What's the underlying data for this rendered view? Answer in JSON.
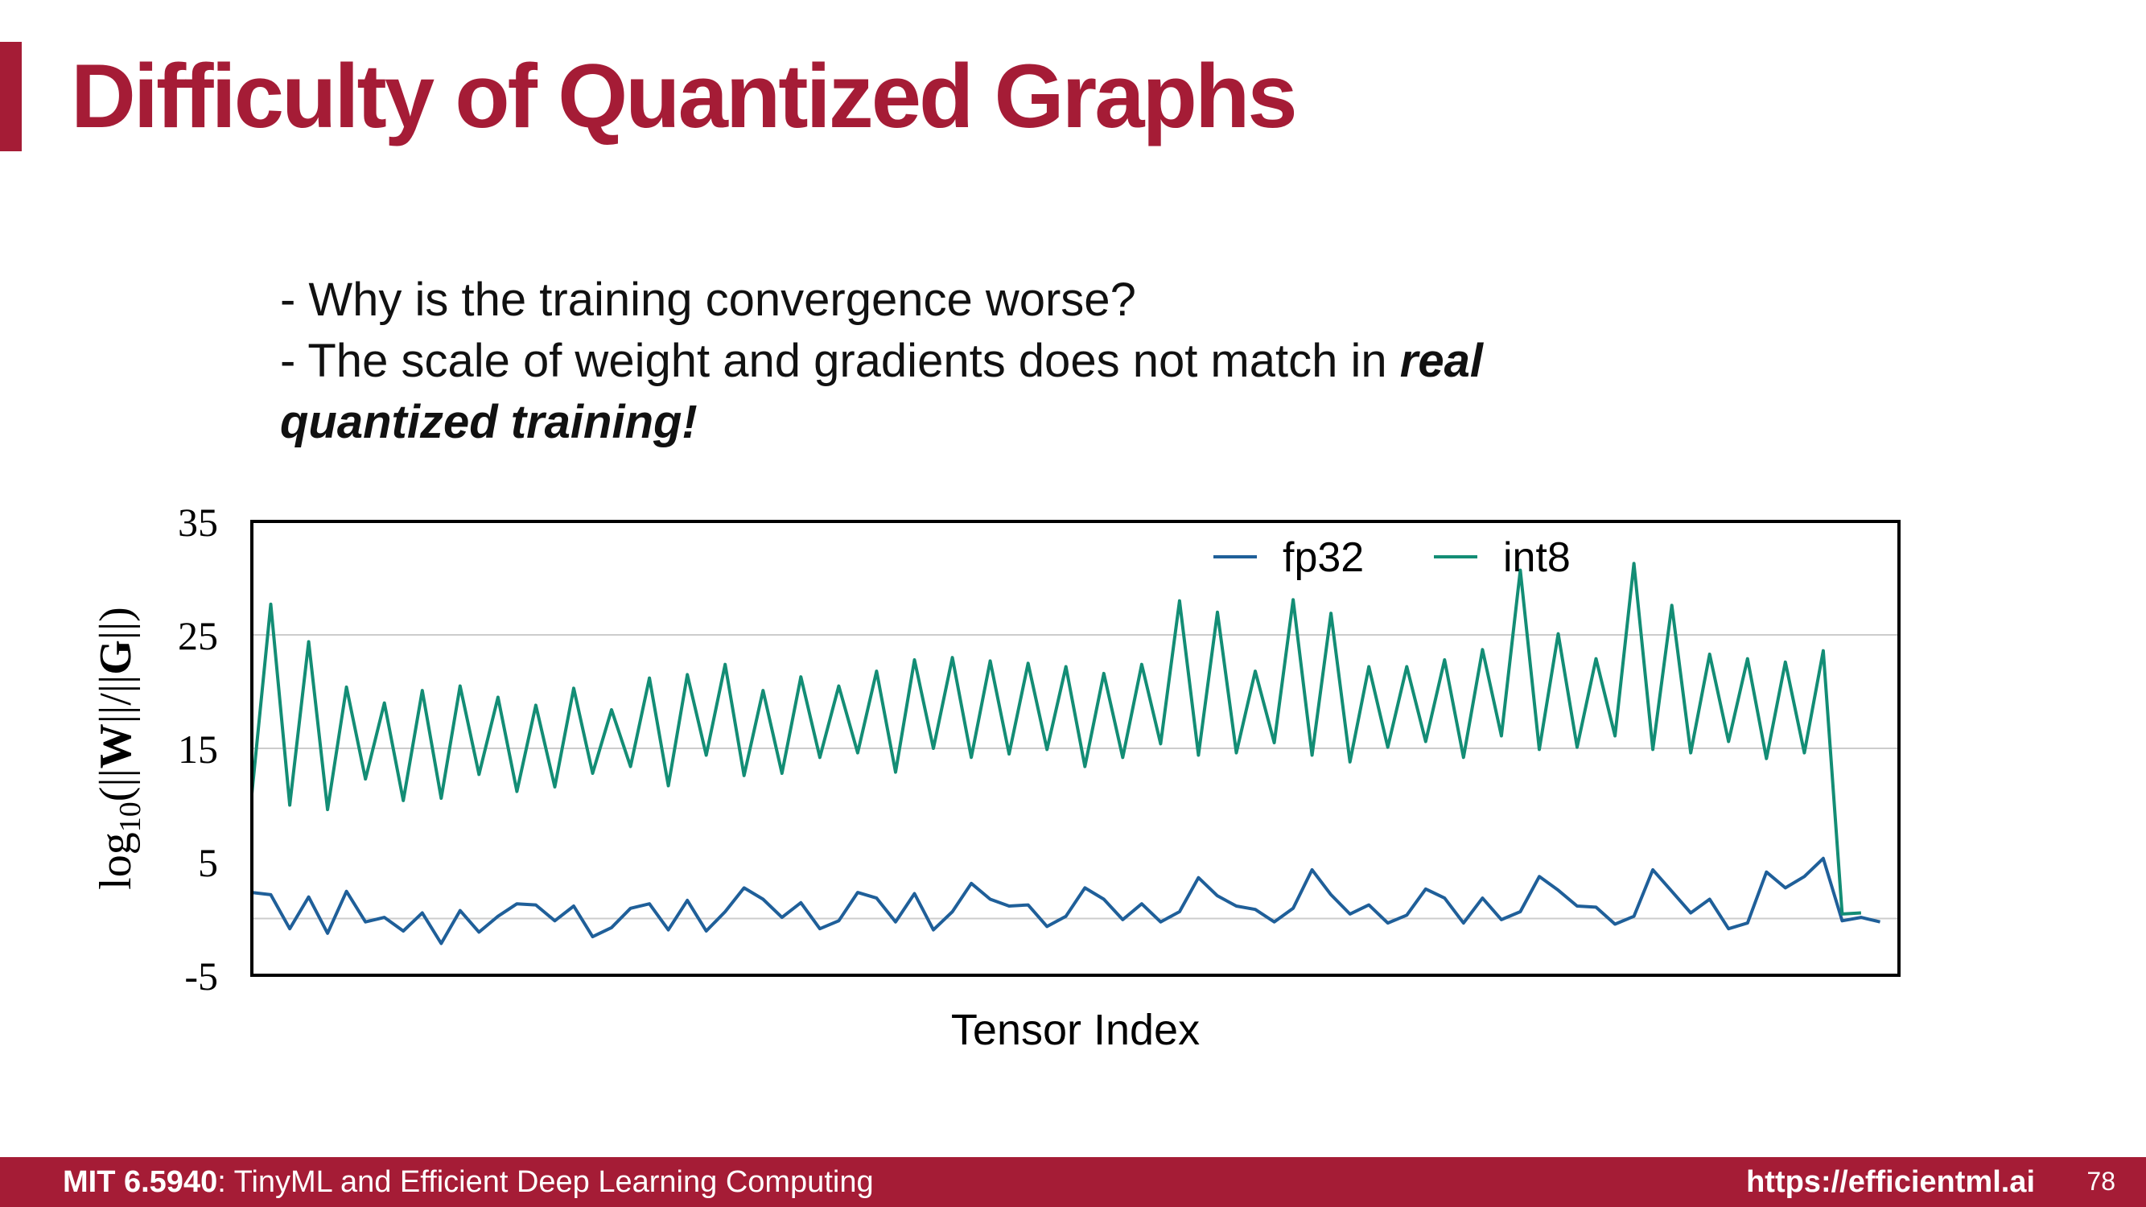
{
  "slide": {
    "title": "Difficulty of Quantized Graphs",
    "bullet1": "- Why is the training convergence worse?",
    "bullet2_prefix": "- The scale of weight and gradients does not match in ",
    "bullet2_emph_a": "real",
    "bullet2_emph_b": "quantized training!"
  },
  "footer": {
    "course_code": "MIT 6.5940",
    "course_name": ": TinyML and Efficient Deep Learning Computing",
    "url": "https://efficientml.ai",
    "page_number": "78"
  },
  "colors": {
    "accent": "#a51c36",
    "fp32": "#1f5f99",
    "int8": "#138d75"
  },
  "chart_data": {
    "type": "line",
    "xlabel": "Tensor Index",
    "ylabel": "log10(||W||/||G||)",
    "ylim": [
      -5,
      35
    ],
    "yticks": [
      "35",
      "25",
      "15",
      "5",
      "-5"
    ],
    "grid": "horizontal",
    "legend": "top-right",
    "x": [
      1,
      2,
      3,
      4,
      5,
      6,
      7,
      8,
      9,
      10,
      11,
      12,
      13,
      14,
      15,
      16,
      17,
      18,
      19,
      20,
      21,
      22,
      23,
      24,
      25,
      26,
      27,
      28,
      29,
      30,
      31,
      32,
      33,
      34,
      35,
      36,
      37,
      38,
      39,
      40,
      41,
      42,
      43,
      44,
      45,
      46,
      47,
      48,
      49,
      50,
      51,
      52,
      53,
      54,
      55,
      56,
      57,
      58,
      59,
      60,
      61,
      62,
      63,
      64,
      65,
      66,
      67,
      68,
      69,
      70,
      71,
      72,
      73,
      74,
      75,
      76,
      77,
      78,
      79,
      80,
      81,
      82,
      83,
      84,
      85,
      86,
      87,
      88
    ],
    "series": [
      {
        "name": "fp32",
        "values": [
          2.3,
          2.1,
          -0.9,
          1.9,
          -1.3,
          2.4,
          -0.3,
          0.1,
          -1.1,
          0.5,
          -2.2,
          0.7,
          -1.2,
          0.2,
          1.3,
          1.2,
          -0.2,
          1.1,
          -1.6,
          -0.8,
          0.9,
          1.3,
          -1.0,
          1.6,
          -1.1,
          0.6,
          2.7,
          1.7,
          0.1,
          1.4,
          -0.9,
          -0.2,
          2.3,
          1.8,
          -0.3,
          2.2,
          -1.0,
          0.6,
          3.1,
          1.7,
          1.1,
          1.2,
          -0.7,
          0.2,
          2.7,
          1.7,
          -0.1,
          1.3,
          -0.3,
          0.6,
          3.6,
          2.0,
          1.1,
          0.8,
          -0.3,
          0.9,
          4.3,
          2.1,
          0.4,
          1.2,
          -0.4,
          0.3,
          2.6,
          1.8,
          -0.4,
          1.8,
          -0.1,
          0.6,
          3.7,
          2.5,
          1.1,
          1.0,
          -0.5,
          0.2,
          4.3,
          2.4,
          0.5,
          1.7,
          -0.9,
          -0.4,
          4.1,
          2.7,
          3.7,
          5.3,
          -0.2,
          0.1,
          -0.3,
          null
        ],
        "values_tail_note": ""
      },
      {
        "name": "int8",
        "values": [
          11.0,
          27.7,
          10.0,
          24.4,
          9.6,
          20.4,
          12.3,
          19.0,
          10.4,
          20.1,
          10.6,
          20.5,
          12.7,
          19.5,
          11.2,
          18.8,
          11.6,
          20.3,
          12.8,
          18.4,
          13.4,
          21.2,
          11.7,
          21.5,
          14.4,
          22.4,
          12.6,
          20.1,
          12.8,
          21.3,
          14.2,
          20.5,
          14.6,
          21.8,
          12.9,
          22.8,
          15.0,
          23.0,
          14.2,
          22.7,
          14.5,
          22.5,
          14.9,
          22.2,
          13.4,
          21.6,
          14.2,
          22.4,
          15.4,
          28.0,
          14.4,
          27.0,
          14.6,
          21.8,
          15.5,
          28.1,
          14.4,
          26.9,
          13.8,
          22.2,
          15.1,
          22.2,
          15.6,
          22.8,
          14.2,
          23.7,
          16.1,
          30.7,
          14.9,
          25.1,
          15.1,
          22.9,
          16.1,
          31.3,
          14.9,
          27.6,
          14.6,
          23.3,
          15.6,
          22.9,
          14.1,
          22.6,
          14.6,
          23.6,
          0.4,
          0.5,
          null,
          null
        ]
      }
    ]
  }
}
